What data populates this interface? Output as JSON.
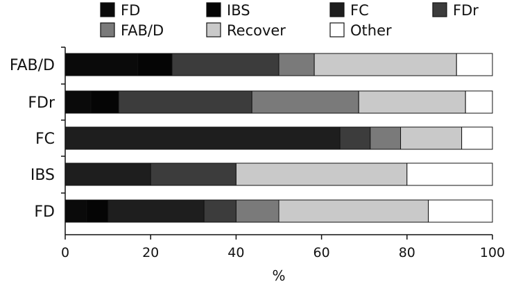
{
  "chart_data": {
    "type": "bar",
    "orientation": "horizontal",
    "stacked": true,
    "categories": [
      "FD",
      "IBS",
      "FC",
      "FDr",
      "FAB/D"
    ],
    "series": [
      {
        "name": "FD",
        "color": "#0a0a0a",
        "values": [
          5,
          0,
          0,
          6,
          17
        ]
      },
      {
        "name": "IBS",
        "color": "#050505",
        "values": [
          5,
          0,
          0,
          6.5,
          8
        ]
      },
      {
        "name": "FC",
        "color": "#1e1e1e",
        "values": [
          22.5,
          20,
          64.3,
          0,
          0
        ]
      },
      {
        "name": "FDr",
        "color": "#3c3c3c",
        "values": [
          7.5,
          20,
          7.1,
          31.2,
          25
        ]
      },
      {
        "name": "FAB/D",
        "color": "#7a7a7a",
        "values": [
          10,
          0,
          7.1,
          25,
          8.3
        ]
      },
      {
        "name": "Recover",
        "color": "#c9c9c9",
        "values": [
          35,
          40,
          14.3,
          25,
          33.3
        ]
      },
      {
        "name": "Other",
        "color": "#ffffff",
        "values": [
          15,
          20,
          7.2,
          6.3,
          8.4
        ]
      }
    ],
    "xlabel": "%",
    "ylabel": "",
    "xlim": [
      0,
      100
    ],
    "xticks": [
      0,
      20,
      40,
      60,
      80,
      100
    ],
    "grid": false,
    "legend_position": "top"
  }
}
